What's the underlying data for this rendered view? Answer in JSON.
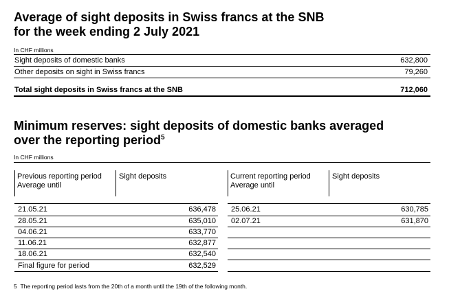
{
  "section1": {
    "title_line1": "Average of sight deposits in Swiss francs at the SNB",
    "title_line2": "for the week ending 2 July 2021",
    "unit": "In CHF millions",
    "rows": [
      {
        "label": "Sight deposits of domestic banks",
        "value": "632,800"
      },
      {
        "label": "Other deposits on sight in Swiss francs",
        "value": "79,260"
      }
    ],
    "total": {
      "label": "Total sight deposits in Swiss francs at the SNB",
      "value": "712,060"
    }
  },
  "section2": {
    "title_line1": "Minimum reserves: sight deposits of domestic banks averaged",
    "title_line2": "over the reporting period",
    "footnote_ref": "5",
    "unit": "In CHF millions",
    "previous": {
      "header_line1": "Previous reporting period",
      "header_line2": "Average until",
      "value_header": "Sight deposits",
      "rows": [
        {
          "date": "21.05.21",
          "value": "636,478"
        },
        {
          "date": "28.05.21",
          "value": "635,010"
        },
        {
          "date": "04.06.21",
          "value": "633,770"
        },
        {
          "date": "11.06.21",
          "value": "632,877"
        },
        {
          "date": "18.06.21",
          "value": "632,540"
        },
        {
          "date": "Final figure for period",
          "value": "632,529"
        }
      ]
    },
    "current": {
      "header_line1": "Current reporting period",
      "header_line2": "Average until",
      "value_header": "Sight deposits",
      "rows": [
        {
          "date": "25.06.21",
          "value": "630,785"
        },
        {
          "date": "02.07.21",
          "value": "631,870"
        }
      ]
    }
  },
  "footnote": {
    "number": "5",
    "text": "The reporting period lasts from the 20th of a month until the 19th of the following month."
  }
}
